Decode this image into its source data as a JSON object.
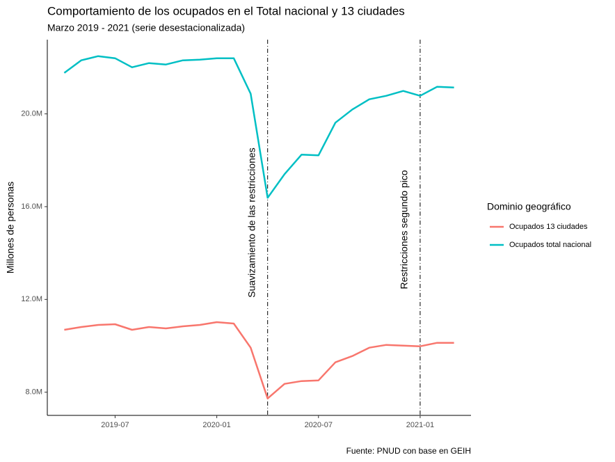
{
  "chart_data": {
    "type": "line",
    "title": "Comportamiento de los ocupados en el Total nacional y 13 ciudades",
    "subtitle": "Marzo 2019 - 2021 (serie desestacionalizada)",
    "y_label": "Millones de personas",
    "caption": "Fuente: PNUD con base en GEIH",
    "legend_title": "Dominio geográfico",
    "legend_position": "right",
    "grid": false,
    "x": [
      "2019-04",
      "2019-05",
      "2019-06",
      "2019-07",
      "2019-08",
      "2019-09",
      "2019-10",
      "2019-11",
      "2019-12",
      "2020-01",
      "2020-02",
      "2020-03",
      "2020-04",
      "2020-05",
      "2020-06",
      "2020-07",
      "2020-08",
      "2020-09",
      "2020-10",
      "2020-11",
      "2020-12",
      "2021-01",
      "2021-02",
      "2021-03"
    ],
    "xlim": [
      "2019-03",
      "2021-04"
    ],
    "xticks": [
      "2019-07",
      "2020-01",
      "2020-07",
      "2021-01"
    ],
    "ylim": [
      7.0,
      23.2
    ],
    "yticks": [
      {
        "value": 8,
        "label": "8.0M"
      },
      {
        "value": 12,
        "label": "12.0M"
      },
      {
        "value": 16,
        "label": "16.0M"
      },
      {
        "value": 20,
        "label": "20.0M"
      }
    ],
    "series": [
      {
        "name": "Ocupados 13 ciudades",
        "color": "#f8766d",
        "values": [
          10.69,
          10.81,
          10.9,
          10.93,
          10.69,
          10.81,
          10.75,
          10.84,
          10.9,
          11.02,
          10.96,
          9.92,
          7.73,
          8.36,
          8.48,
          8.51,
          9.29,
          9.56,
          9.92,
          10.04,
          10.01,
          9.98,
          10.13,
          10.13
        ]
      },
      {
        "name": "Ocupados total nacional",
        "color": "#00bfc4",
        "values": [
          21.77,
          22.31,
          22.49,
          22.4,
          22.01,
          22.19,
          22.13,
          22.31,
          22.34,
          22.4,
          22.4,
          20.87,
          16.38,
          17.4,
          18.24,
          18.21,
          19.62,
          20.19,
          20.63,
          20.78,
          20.99,
          20.78,
          21.17,
          21.14
        ]
      }
    ],
    "vlines": [
      {
        "x": "2020-04",
        "label": "Suavizamiento de las restricciones"
      },
      {
        "x": "2021-01",
        "label": "Restricciones segundo pico"
      }
    ]
  }
}
